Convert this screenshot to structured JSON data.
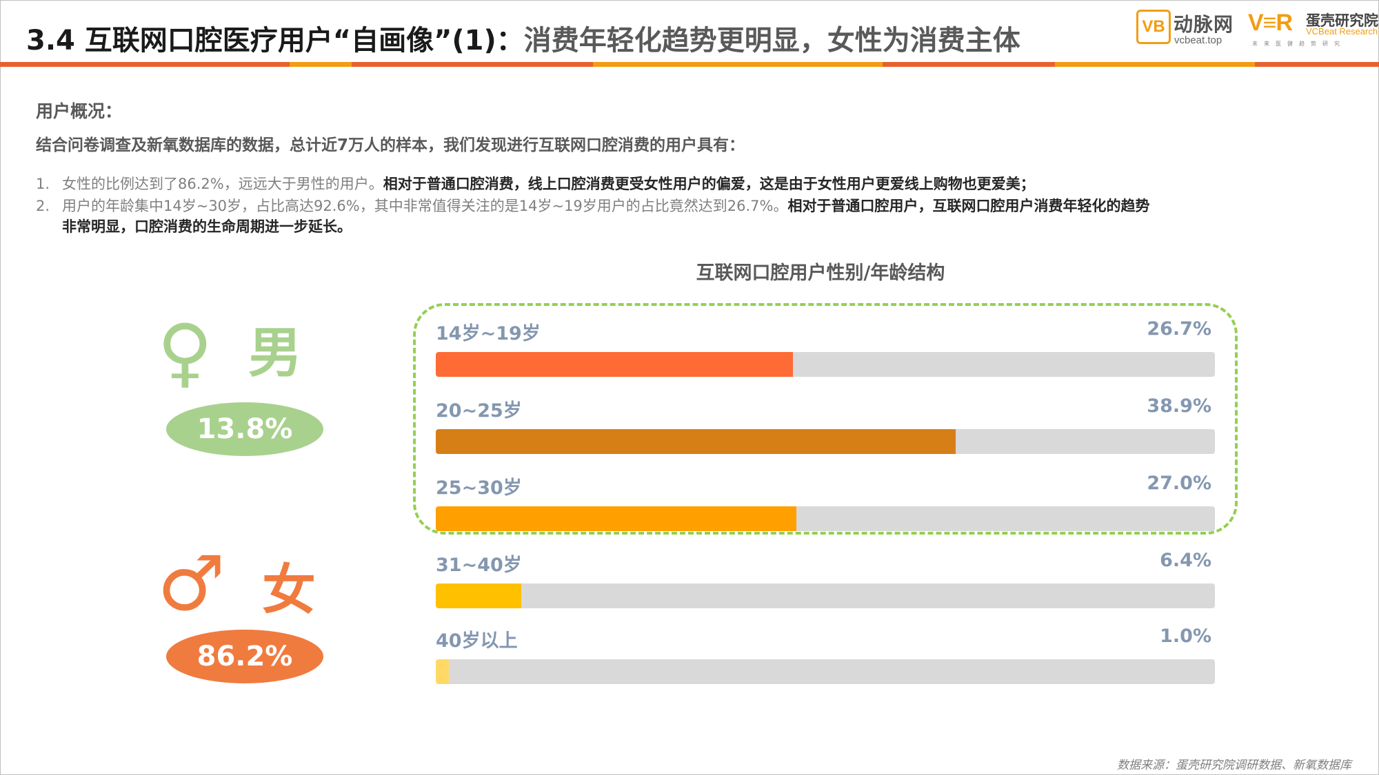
{
  "header": {
    "title_main": "3.4 互联网口腔医疗用户“自画像”(1)：",
    "title_sub": "消费年轻化趋势更明显，女性为消费主体",
    "logo1": {
      "mark": "VB",
      "cn": "动脉网",
      "en": "vcbeat.top"
    },
    "logo2": {
      "mark": "V≡R",
      "cn": "蛋壳研究院",
      "en": "VCBeat Research",
      "tag": "未来医健趋势研究"
    },
    "bar_colors": [
      "#e8602c",
      "#f39c12",
      "#e8602c",
      "#f39c12",
      "#e8602c",
      "#f39c12",
      "#e8602c"
    ]
  },
  "intro": {
    "heading": "用户概况：",
    "summary": "结合问卷调查及新氧数据库的数据，总计近7万人的样本，我们发现进行互联网口腔消费的用户具有：",
    "items": [
      {
        "num": "1.",
        "normal": "女性的比例达到了86.2%，远远大于男性的用户。",
        "bold": "相对于普通口腔消费，线上口腔消费更受女性用户的偏爱，这是由于女性用户更爱线上购物也更爱美；"
      },
      {
        "num": "2.",
        "normal": "用户的年龄集中14岁~30岁，占比高达92.6%，其中非常值得关注的是14岁~19岁用户的占比竟然达到26.7%。",
        "bold": "相对于普通口腔用户，互联网口腔用户消费年轻化的趋势",
        "bold2": "非常明显，口腔消费的生命周期进一步延长。"
      }
    ]
  },
  "gender": {
    "male": {
      "symbol": "♀",
      "label": "男",
      "value": "13.8%",
      "color": "#a9d18e"
    },
    "female": {
      "symbol": "♂",
      "label": "女",
      "value": "86.2%",
      "color": "#f07b3f"
    }
  },
  "chart_data": {
    "type": "bar",
    "title": "互联网口腔用户性别/年龄结构",
    "categories": [
      "14岁~19岁",
      "20~25岁",
      "25~30岁",
      "31~40岁",
      "40岁以上"
    ],
    "values": [
      26.7,
      38.9,
      27.0,
      6.4,
      1.0
    ],
    "value_labels": [
      "26.7%",
      "38.9%",
      "27.0%",
      "6.4%",
      "1.0%"
    ],
    "bar_max_percent": 58.3,
    "colors": [
      "#ff6b35",
      "#d67f16",
      "#ffa000",
      "#ffc000",
      "#ffd966"
    ]
  },
  "source": "数据来源：蛋壳研究院调研数据、新氧数据库"
}
